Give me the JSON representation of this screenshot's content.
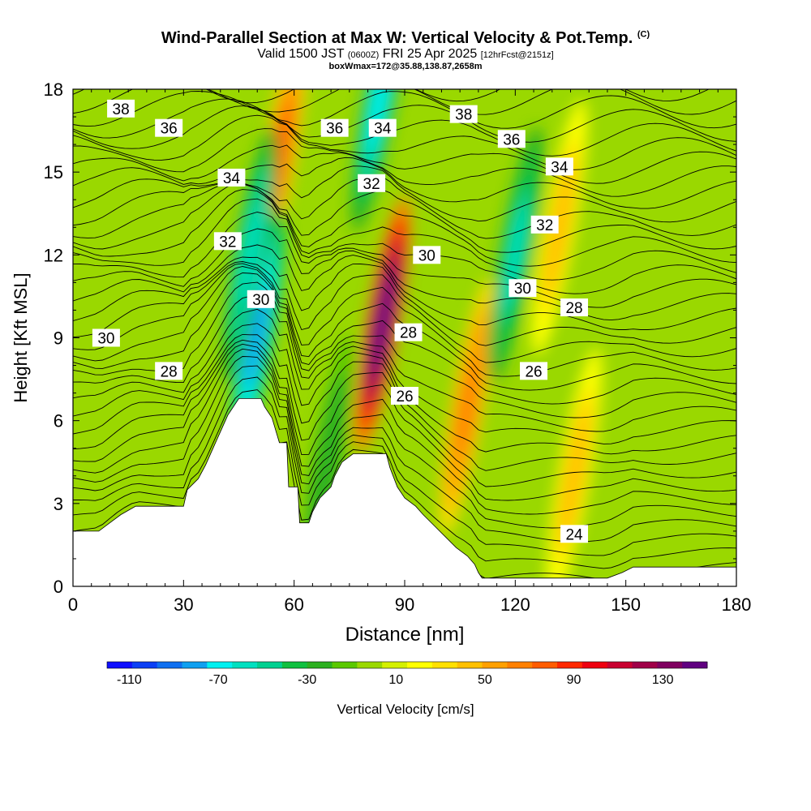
{
  "header": {
    "title": "Wind-Parallel Section at Max W: Vertical Velocity & Pot.Temp.",
    "title_mark": "(C)",
    "valid_prefix": "Valid 1500 JST",
    "valid_utc": "(0600Z)",
    "valid_date": "FRI 25 Apr 2025",
    "forecast": "[12hrFcst@2151z]",
    "boxinfo": "boxWmax=172@35.88,138.87,2658m"
  },
  "chart_data": {
    "type": "heatmap",
    "xlabel": "Distance [nm]",
    "ylabel": "Height [Kft MSL]",
    "xlim": [
      0,
      180
    ],
    "ylim": [
      0,
      18
    ],
    "xticks": [
      0,
      30,
      60,
      90,
      120,
      150,
      180
    ],
    "yticks": [
      0,
      3,
      6,
      9,
      12,
      15,
      18
    ],
    "colorbar": {
      "label": "Vertical Velocity [cm/s]",
      "range": [
        -120,
        150
      ],
      "ticks": [
        -110,
        -70,
        -30,
        10,
        50,
        90,
        130
      ],
      "colors": [
        "#1010ff",
        "#0c40f5",
        "#1070f0",
        "#10a0f0",
        "#00f0f0",
        "#00e0c0",
        "#00d090",
        "#10c040",
        "#2cb020",
        "#5ac800",
        "#9ad800",
        "#d4f000",
        "#ffff00",
        "#ffe000",
        "#ffc000",
        "#ffa000",
        "#ff8000",
        "#ff5c00",
        "#ff2800",
        "#ee0010",
        "#c80030",
        "#a00048",
        "#800060",
        "#600080"
      ]
    },
    "velocity_cores": [
      {
        "x": 56,
        "y": 15.5,
        "w": 75,
        "kind": "updraft"
      },
      {
        "x": 84,
        "y": 9.5,
        "w": 160,
        "kind": "updraft"
      },
      {
        "x": 107,
        "y": 6.5,
        "w": 70,
        "kind": "updraft"
      },
      {
        "x": 136,
        "y": 4,
        "w": 45,
        "kind": "updraft"
      },
      {
        "x": 132,
        "y": 13,
        "w": 45,
        "kind": "updraft"
      },
      {
        "x": 50,
        "y": 9,
        "w": -80,
        "kind": "downdraft"
      },
      {
        "x": 83,
        "y": 17.5,
        "w": -65,
        "kind": "downdraft"
      },
      {
        "x": 120,
        "y": 12,
        "w": -55,
        "kind": "downdraft"
      },
      {
        "x": 48,
        "y": 12,
        "w": -60,
        "kind": "downdraft"
      },
      {
        "x": 69,
        "y": 4.5,
        "w": -30,
        "kind": "downdraft"
      }
    ],
    "terrain": [
      [
        0,
        2
      ],
      [
        7,
        2
      ],
      [
        10,
        2.3
      ],
      [
        13,
        2.6
      ],
      [
        17,
        2.9
      ],
      [
        20,
        2.9
      ],
      [
        30,
        2.9
      ],
      [
        31,
        3.5
      ],
      [
        34,
        3.9
      ],
      [
        36,
        4.4
      ],
      [
        38,
        5
      ],
      [
        40,
        5.6
      ],
      [
        42,
        6.2
      ],
      [
        45,
        6.8
      ],
      [
        51,
        6.8
      ],
      [
        52,
        6.5
      ],
      [
        54,
        6.1
      ],
      [
        56,
        5.2
      ],
      [
        58,
        5.2
      ],
      [
        58.5,
        3.6
      ],
      [
        61,
        3.6
      ],
      [
        61.5,
        2.3
      ],
      [
        64,
        2.3
      ],
      [
        65,
        2.7
      ],
      [
        67,
        3.2
      ],
      [
        70,
        3.6
      ],
      [
        71,
        4
      ],
      [
        73,
        4.5
      ],
      [
        76,
        4.8
      ],
      [
        85,
        4.8
      ],
      [
        86,
        4.3
      ],
      [
        88,
        3.6
      ],
      [
        90,
        3.2
      ],
      [
        93,
        2.9
      ],
      [
        95,
        2.6
      ],
      [
        98,
        2.2
      ],
      [
        101,
        1.8
      ],
      [
        104,
        1.4
      ],
      [
        107,
        1.1
      ],
      [
        109,
        0.8
      ],
      [
        110,
        0.5
      ],
      [
        111,
        0.3
      ],
      [
        114,
        0.3
      ],
      [
        131,
        0.3
      ],
      [
        145,
        0.3
      ],
      [
        149,
        0.5
      ],
      [
        152,
        0.7
      ],
      [
        180,
        0.7
      ]
    ],
    "theta_label_positions": [
      {
        "label": "38",
        "x": 13,
        "y": 17.3
      },
      {
        "label": "36",
        "x": 26,
        "y": 16.6
      },
      {
        "label": "34",
        "x": 43,
        "y": 14.8
      },
      {
        "label": "32",
        "x": 42,
        "y": 12.5
      },
      {
        "label": "30",
        "x": 51,
        "y": 10.4
      },
      {
        "label": "30",
        "x": 9,
        "y": 9
      },
      {
        "label": "28",
        "x": 26,
        "y": 7.8
      },
      {
        "label": "36",
        "x": 71,
        "y": 16.6
      },
      {
        "label": "34",
        "x": 84,
        "y": 16.6
      },
      {
        "label": "32",
        "x": 81,
        "y": 14.6
      },
      {
        "label": "30",
        "x": 96,
        "y": 12
      },
      {
        "label": "28",
        "x": 91,
        "y": 9.2
      },
      {
        "label": "26",
        "x": 90,
        "y": 6.9
      },
      {
        "label": "38",
        "x": 106,
        "y": 17.1
      },
      {
        "label": "36",
        "x": 119,
        "y": 16.2
      },
      {
        "label": "34",
        "x": 132,
        "y": 15.2
      },
      {
        "label": "32",
        "x": 128,
        "y": 13.1
      },
      {
        "label": "30",
        "x": 122,
        "y": 10.8
      },
      {
        "label": "28",
        "x": 136,
        "y": 10.1
      },
      {
        "label": "26",
        "x": 125,
        "y": 7.8
      },
      {
        "label": "24",
        "x": 136,
        "y": 1.9
      }
    ]
  }
}
